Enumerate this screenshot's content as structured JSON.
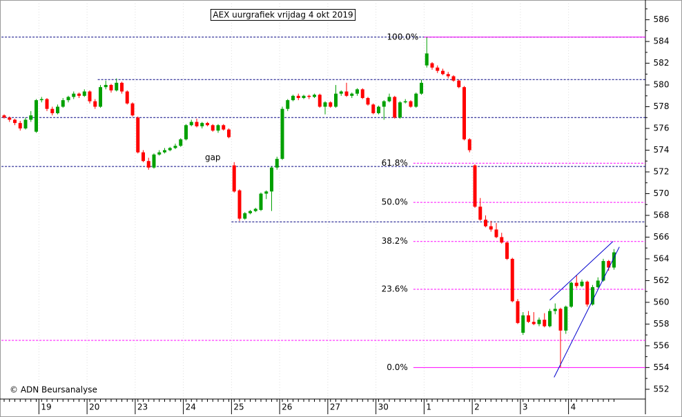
{
  "chart_data": {
    "type": "candlestick",
    "title": "AEX uurgrafiek vrijdag 4 okt 2019",
    "source": "© ADN Beursanalyse",
    "up_color": "#00a000",
    "down_color": "#ff0000",
    "ylim": [
      551.1,
      587.5
    ],
    "yticks": [
      552,
      554,
      556,
      558,
      560,
      562,
      564,
      566,
      568,
      570,
      572,
      574,
      576,
      578,
      580,
      582,
      584,
      586
    ],
    "grid": true,
    "categories": [
      null,
      null,
      null,
      null,
      null,
      null,
      null,
      "19",
      null,
      null,
      null,
      null,
      null,
      null,
      null,
      null,
      "20",
      null,
      null,
      null,
      null,
      null,
      null,
      null,
      null,
      "23",
      null,
      null,
      null,
      null,
      null,
      null,
      null,
      null,
      "24",
      null,
      null,
      null,
      null,
      null,
      null,
      null,
      null,
      "25",
      null,
      null,
      null,
      null,
      null,
      null,
      null,
      null,
      "26",
      null,
      null,
      null,
      null,
      null,
      null,
      null,
      null,
      "27",
      null,
      null,
      null,
      null,
      null,
      null,
      null,
      null,
      "30",
      null,
      null,
      null,
      null,
      null,
      null,
      null,
      null,
      "1",
      null,
      null,
      null,
      null,
      null,
      null,
      null,
      null,
      "2",
      null,
      null,
      null,
      null,
      null,
      null,
      null,
      null,
      "3",
      null,
      null,
      null,
      null,
      null,
      null,
      null,
      null,
      "4",
      null,
      null,
      null,
      null,
      null,
      null,
      null,
      null
    ],
    "open": [
      577.2,
      577.0,
      576.8,
      576.5,
      576.0,
      576.8,
      575.7,
      578.6,
      578.7,
      577.8,
      577.4,
      578.0,
      578.6,
      578.9,
      579.2,
      579.0,
      579.4,
      578.5,
      578.0,
      579.8,
      580.0,
      579.5,
      580.2,
      579.4,
      578.3,
      577.0,
      573.8,
      573.0,
      572.4,
      573.6,
      573.8,
      574.0,
      574.2,
      574.4,
      575.0,
      576.3,
      576.6,
      576.2,
      576.5,
      576.3,
      575.8,
      576.3,
      575.9,
      572.6,
      570.3,
      567.7,
      568.2,
      568.4,
      568.5,
      570.0,
      570.2,
      572.4,
      573.2,
      577.8,
      578.6,
      579.0,
      578.8,
      579.0,
      578.9,
      579.1,
      578.0,
      578.4,
      578.0,
      579.2,
      579.4,
      579.0,
      579.2,
      579.6,
      578.8,
      578.2,
      577.4,
      578.0,
      578.5,
      578.9,
      577.0,
      578.4,
      578.5,
      578.0,
      579.2,
      581.8,
      582.0,
      581.6,
      581.3,
      581.0,
      580.8,
      580.4,
      579.8,
      575.0,
      572.6,
      568.8,
      567.6,
      567.0,
      566.7,
      566.0,
      565.5,
      564.0,
      560.1,
      557.2,
      558.8,
      558.2,
      558.0,
      558.4,
      557.8,
      559.2,
      559.4,
      557.4,
      559.6,
      561.8,
      561.5,
      561.9,
      559.8,
      561.4,
      562.0,
      563.8,
      563.2
    ],
    "high": [
      577.3,
      577.1,
      576.9,
      576.7,
      577.0,
      577.6,
      578.7,
      578.9,
      578.8,
      578.0,
      578.2,
      578.8,
      579.0,
      579.4,
      579.3,
      579.6,
      579.5,
      578.7,
      580.0,
      580.4,
      580.1,
      580.6,
      580.3,
      579.5,
      578.4,
      577.1,
      574.0,
      573.3,
      573.7,
      574.0,
      574.2,
      574.3,
      574.6,
      575.1,
      576.4,
      576.8,
      576.9,
      576.6,
      576.6,
      576.4,
      576.4,
      576.4,
      576.0,
      572.9,
      570.4,
      568.3,
      568.5,
      568.7,
      570.1,
      570.3,
      572.5,
      573.4,
      578.0,
      578.7,
      579.1,
      579.2,
      579.1,
      579.1,
      579.2,
      579.2,
      578.5,
      578.5,
      580.0,
      579.5,
      580.2,
      579.3,
      579.7,
      579.7,
      578.9,
      578.3,
      578.1,
      578.6,
      579.2,
      579.0,
      578.5,
      578.7,
      578.6,
      579.3,
      580.5,
      584.4,
      582.1,
      581.8,
      581.5,
      581.2,
      580.9,
      580.5,
      579.9,
      575.1,
      572.7,
      569.6,
      568.0,
      567.5,
      567.3,
      566.4,
      565.6,
      564.1,
      560.3,
      559.1,
      559.2,
      559.1,
      558.6,
      559.0,
      559.4,
      559.9,
      559.5,
      559.7,
      561.9,
      562.5,
      562.1,
      562.0,
      561.6,
      562.3,
      564.0,
      563.9,
      564.9
    ],
    "low": [
      576.9,
      576.6,
      576.3,
      575.8,
      575.9,
      576.6,
      575.6,
      578.4,
      577.6,
      577.2,
      577.3,
      577.9,
      578.4,
      578.7,
      578.8,
      578.9,
      578.3,
      577.8,
      577.9,
      579.6,
      579.3,
      579.4,
      579.2,
      578.2,
      577.1,
      573.7,
      572.9,
      572.2,
      572.3,
      573.5,
      573.7,
      573.9,
      574.1,
      574.3,
      574.9,
      576.2,
      576.1,
      576.0,
      576.2,
      575.7,
      575.6,
      575.8,
      575.1,
      570.1,
      567.5,
      567.6,
      568.1,
      568.3,
      568.4,
      569.5,
      568.4,
      572.2,
      573.1,
      577.6,
      578.5,
      578.6,
      578.7,
      578.7,
      578.8,
      577.9,
      577.3,
      577.9,
      577.9,
      579.0,
      578.9,
      578.8,
      579.0,
      578.7,
      578.1,
      577.3,
      577.3,
      576.8,
      578.4,
      576.9,
      576.9,
      578.3,
      577.9,
      577.9,
      579.1,
      581.6,
      581.4,
      581.1,
      580.9,
      580.6,
      580.3,
      579.7,
      574.9,
      573.8,
      568.7,
      567.5,
      566.9,
      566.5,
      565.9,
      565.4,
      563.9,
      560.0,
      558.0,
      557.0,
      558.1,
      557.9,
      557.8,
      557.7,
      557.7,
      558.9,
      554.0,
      557.1,
      559.5,
      561.3,
      561.4,
      559.6,
      559.7,
      561.3,
      561.9,
      562.9,
      563.0
    ],
    "close": [
      577.0,
      576.8,
      576.5,
      576.0,
      576.8,
      577.2,
      578.6,
      578.7,
      577.8,
      577.4,
      578.0,
      578.6,
      578.9,
      579.2,
      579.0,
      579.4,
      578.5,
      578.0,
      579.8,
      580.0,
      579.5,
      580.2,
      579.4,
      578.3,
      577.2,
      573.8,
      573.0,
      572.4,
      573.6,
      573.8,
      574.0,
      574.2,
      574.4,
      575.0,
      576.3,
      576.6,
      576.2,
      576.5,
      576.3,
      575.8,
      576.3,
      575.9,
      575.2,
      570.2,
      567.7,
      568.2,
      568.4,
      568.6,
      570.0,
      570.2,
      572.4,
      573.2,
      577.8,
      578.6,
      579.0,
      578.8,
      579.0,
      578.9,
      579.1,
      578.0,
      578.4,
      578.0,
      579.2,
      579.4,
      579.0,
      579.2,
      579.6,
      578.8,
      578.2,
      577.4,
      578.0,
      578.5,
      578.9,
      577.0,
      578.4,
      578.5,
      578.0,
      579.2,
      580.2,
      582.9,
      581.6,
      581.3,
      581.0,
      580.8,
      580.4,
      579.8,
      575.0,
      574.0,
      568.8,
      567.6,
      567.0,
      566.7,
      566.0,
      565.5,
      564.0,
      560.1,
      558.1,
      558.8,
      558.2,
      558.0,
      558.4,
      557.8,
      559.2,
      559.4,
      557.4,
      559.6,
      561.8,
      561.5,
      561.9,
      559.8,
      561.4,
      562.0,
      563.8,
      563.2,
      564.6
    ],
    "levels": [
      {
        "value": 584.4,
        "color": "#000080",
        "dashed": true,
        "start": 0
      },
      {
        "value": 580.5,
        "color": "#000080",
        "dashed": true,
        "start": 18
      },
      {
        "value": 577.0,
        "color": "#000080",
        "dashed": true,
        "start": 0
      },
      {
        "value": 572.5,
        "color": "#000080",
        "dashed": true,
        "start": 0
      },
      {
        "value": 567.4,
        "color": "#000080",
        "dashed": true,
        "start": 43
      },
      {
        "value": 556.5,
        "color": "#ff00ff",
        "dashed": true,
        "start": 0
      },
      {
        "value": 584.4,
        "label": "100.0%",
        "color": "#ff00ff",
        "dashed": false,
        "start": 79
      },
      {
        "value": 572.8,
        "label": "61.8%",
        "color": "#ff00ff",
        "dashed": true,
        "start": 77
      },
      {
        "value": 569.2,
        "label": "50.0%",
        "color": "#ff00ff",
        "dashed": true,
        "start": 77
      },
      {
        "value": 565.6,
        "label": "38.2%",
        "color": "#ff00ff",
        "dashed": true,
        "start": 77
      },
      {
        "value": 561.2,
        "label": "23.6%",
        "color": "#ff00ff",
        "dashed": true,
        "start": 77
      },
      {
        "value": 554.0,
        "label": "0.0%",
        "color": "#ff00ff",
        "dashed": false,
        "start": 77
      }
    ],
    "trendlines": [
      {
        "x": [
          102,
          113.8
        ],
        "y": [
          560.2,
          565.6
        ],
        "color": "#0000cd"
      },
      {
        "x": [
          102.8,
          115
        ],
        "y": [
          553.1,
          565.1
        ],
        "color": "#0000cd"
      }
    ],
    "annotations": [
      {
        "text": "gap",
        "x": 39,
        "y": 573.3,
        "color": "#aaaaaa"
      }
    ]
  }
}
